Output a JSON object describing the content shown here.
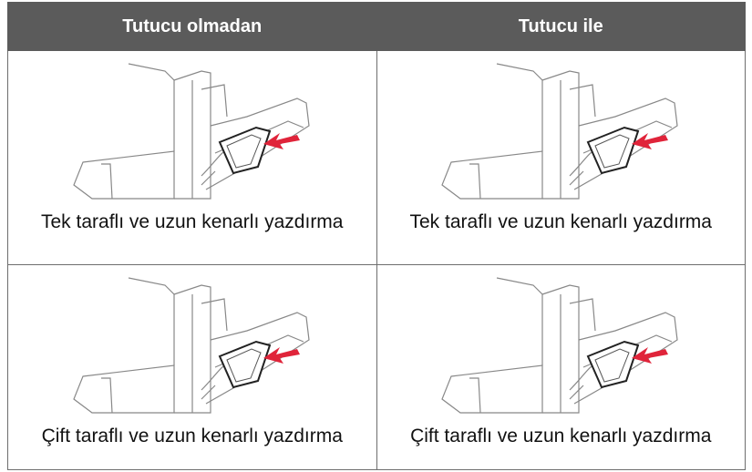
{
  "table": {
    "header": [
      "Tutucu olmadan",
      "Tutucu ile"
    ],
    "rows": [
      [
        "Tek taraflı ve uzun kenarlı yazdırma",
        "Tek taraflı ve uzun kenarlı yazdırma"
      ],
      [
        "Çift taraflı ve uzun kenarlı yazdırma",
        "Çift taraflı ve uzun kenarlı yazdırma"
      ]
    ]
  }
}
